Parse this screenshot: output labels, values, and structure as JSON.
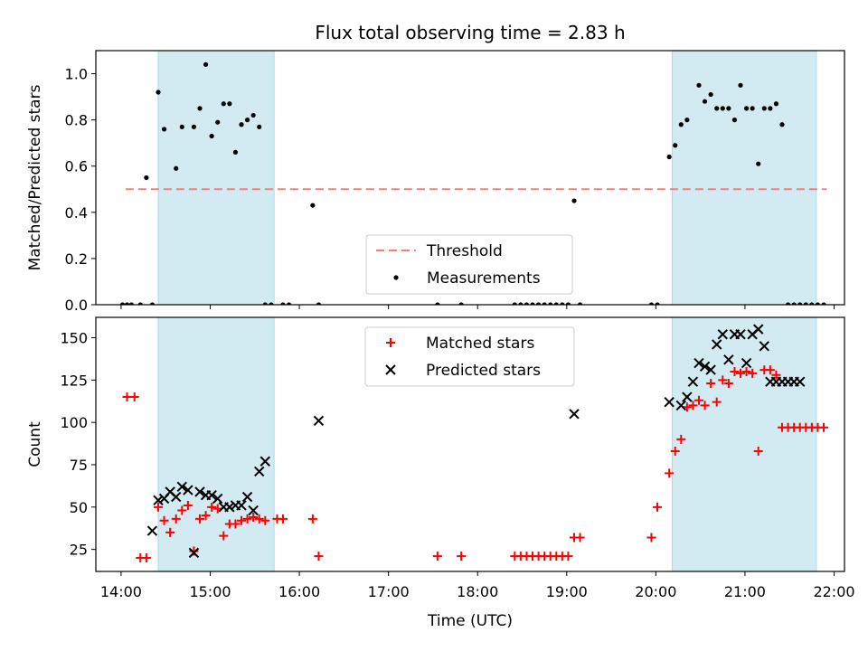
{
  "title": "Flux total observing time = 2.83 h",
  "xlabel": "Time (UTC)",
  "colors": {
    "band": "#add8e6",
    "threshold": "#f08080",
    "matched": "#ff0000",
    "predicted": "#000000",
    "measurement": "#000000"
  },
  "chart_data": [
    {
      "type": "scatter",
      "ylabel": "Matched/Predicted stars",
      "ylim": [
        0,
        1.1
      ],
      "yticks": [
        0.0,
        0.2,
        0.4,
        0.6,
        0.8,
        1.0
      ],
      "ytick_labels": [
        "0.0",
        "0.2",
        "0.4",
        "0.6",
        "0.8",
        "1.0"
      ],
      "legend_position": "bottom-center",
      "shaded_intervals": [
        [
          "14:25",
          "15:43"
        ],
        [
          "20:11",
          "21:48"
        ]
      ],
      "threshold": {
        "name": "Threshold",
        "value": 0.5,
        "x": [
          "14:03",
          "21:55"
        ]
      },
      "series": [
        {
          "name": "Measurements",
          "x": [
            "14:01",
            "14:04",
            "14:07",
            "14:13",
            "14:17",
            "14:21",
            "14:25",
            "14:29",
            "14:37",
            "14:41",
            "14:49",
            "14:53",
            "14:57",
            "15:01",
            "15:05",
            "15:09",
            "15:13",
            "15:17",
            "15:21",
            "15:25",
            "15:29",
            "15:33",
            "15:37",
            "15:41",
            "15:49",
            "15:53",
            "16:09",
            "16:13",
            "17:33",
            "17:49",
            "18:25",
            "18:29",
            "18:33",
            "18:37",
            "18:41",
            "18:45",
            "18:49",
            "18:53",
            "18:57",
            "19:01",
            "19:05",
            "19:09",
            "19:57",
            "20:01",
            "20:09",
            "20:13",
            "20:17",
            "20:21",
            "20:29",
            "20:33",
            "20:37",
            "20:41",
            "20:45",
            "20:49",
            "20:53",
            "20:57",
            "21:01",
            "21:05",
            "21:09",
            "21:13",
            "21:17",
            "21:21",
            "21:25",
            "21:29",
            "21:33",
            "21:37",
            "21:41",
            "21:45",
            "21:49",
            "21:53"
          ],
          "y": [
            0,
            0,
            0,
            0,
            0.55,
            0,
            0.92,
            0.76,
            0.59,
            0.77,
            0.77,
            0.85,
            1.04,
            0.73,
            0.79,
            0.87,
            0.87,
            0.66,
            0.78,
            0.8,
            0.82,
            0.77,
            0,
            0,
            0,
            0,
            0.43,
            0,
            0,
            0,
            0,
            0,
            0,
            0,
            0,
            0,
            0,
            0,
            0,
            0,
            0.45,
            0,
            0,
            0,
            0.64,
            0.69,
            0.78,
            0.8,
            0.95,
            0.88,
            0.91,
            0.85,
            0.85,
            0.85,
            0.8,
            0.95,
            0.85,
            0.85,
            0.61,
            0.85,
            0.85,
            0.87,
            0.78,
            0,
            0,
            0,
            0,
            0,
            0,
            0
          ]
        }
      ]
    },
    {
      "type": "scatter",
      "ylabel": "Count",
      "ylim": [
        12,
        162
      ],
      "yticks": [
        25,
        50,
        75,
        100,
        125,
        150
      ],
      "ytick_labels": [
        "25",
        "50",
        "75",
        "100",
        "125",
        "150"
      ],
      "xlim": [
        "13:43",
        "22:07"
      ],
      "xticks": [
        "14:00",
        "15:00",
        "16:00",
        "17:00",
        "18:00",
        "19:00",
        "20:00",
        "21:00",
        "22:00"
      ],
      "xtick_labels": [
        "14:00",
        "15:00",
        "16:00",
        "17:00",
        "18:00",
        "19:00",
        "20:00",
        "21:00",
        "22:00"
      ],
      "legend_position": "top-center",
      "shaded_intervals": [
        [
          "14:25",
          "15:43"
        ],
        [
          "20:11",
          "21:48"
        ]
      ],
      "series": [
        {
          "name": "Matched stars",
          "marker": "plus",
          "x": [
            "14:04",
            "14:09",
            "14:13",
            "14:17",
            "14:25",
            "14:29",
            "14:33",
            "14:37",
            "14:41",
            "14:45",
            "14:49",
            "14:53",
            "14:57",
            "15:01",
            "15:05",
            "15:09",
            "15:13",
            "15:17",
            "15:21",
            "15:25",
            "15:29",
            "15:33",
            "15:37",
            "15:45",
            "15:49",
            "16:09",
            "16:13",
            "17:33",
            "17:49",
            "18:25",
            "18:29",
            "18:33",
            "18:37",
            "18:41",
            "18:45",
            "18:49",
            "18:53",
            "18:57",
            "19:01",
            "19:05",
            "19:09",
            "19:57",
            "20:01",
            "20:09",
            "20:13",
            "20:17",
            "20:21",
            "20:25",
            "20:29",
            "20:33",
            "20:37",
            "20:41",
            "20:45",
            "20:49",
            "20:53",
            "20:57",
            "21:01",
            "21:05",
            "21:09",
            "21:13",
            "21:17",
            "21:21",
            "21:25",
            "21:29",
            "21:33",
            "21:37",
            "21:41",
            "21:45",
            "21:49",
            "21:53"
          ],
          "y": [
            115,
            115,
            20,
            20,
            50,
            42,
            35,
            43,
            48,
            51,
            24,
            43,
            45,
            50,
            49,
            33,
            40,
            40,
            42,
            43,
            44,
            43,
            42,
            43,
            43,
            43,
            21,
            21,
            21,
            21,
            21,
            21,
            21,
            21,
            21,
            21,
            21,
            21,
            21,
            32,
            32,
            32,
            50,
            70,
            83,
            90,
            109,
            110,
            113,
            110,
            123,
            112,
            125,
            123,
            130,
            129,
            130,
            129,
            83,
            131,
            131,
            128,
            97,
            97,
            97,
            97,
            97,
            97,
            97,
            97
          ]
        },
        {
          "name": "Predicted stars",
          "marker": "x",
          "x": [
            "14:21",
            "14:25",
            "14:29",
            "14:33",
            "14:37",
            "14:41",
            "14:45",
            "14:49",
            "14:53",
            "14:57",
            "15:01",
            "15:05",
            "15:09",
            "15:13",
            "15:17",
            "15:21",
            "15:25",
            "15:29",
            "15:33",
            "15:37",
            "16:13",
            "19:05",
            "20:09",
            "20:17",
            "20:21",
            "20:25",
            "20:29",
            "20:33",
            "20:37",
            "20:41",
            "20:45",
            "20:49",
            "20:53",
            "20:57",
            "21:01",
            "21:05",
            "21:09",
            "21:13",
            "21:17",
            "21:21",
            "21:25",
            "21:29",
            "21:33",
            "21:37"
          ],
          "y": [
            36,
            54,
            55,
            59,
            56,
            62,
            60,
            23,
            59,
            57,
            57,
            55,
            50,
            50,
            51,
            51,
            56,
            48,
            71,
            77,
            101,
            105,
            112,
            110,
            115,
            124,
            135,
            133,
            131,
            146,
            152,
            137,
            152,
            152,
            135,
            152,
            155,
            145,
            124,
            124,
            124,
            124,
            124,
            124
          ]
        }
      ]
    }
  ]
}
